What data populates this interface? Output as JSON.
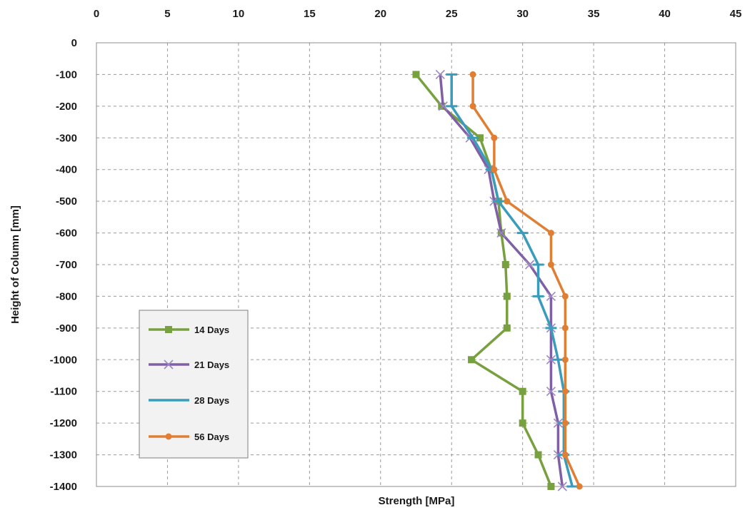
{
  "chart_data": {
    "type": "line",
    "xlabel": "Strength [MPa]",
    "ylabel": "Height of Column [mm]",
    "xlim": [
      0,
      45
    ],
    "ylim": [
      -1400,
      0
    ],
    "x_ticks": [
      0,
      5,
      10,
      15,
      20,
      25,
      30,
      35,
      40,
      45
    ],
    "y_ticks": [
      0,
      -100,
      -200,
      -300,
      -400,
      -500,
      -600,
      -700,
      -800,
      -900,
      -1000,
      -1100,
      -1200,
      -1300,
      -1400
    ],
    "x_axis_position": "top",
    "grid": true,
    "legend_position": "bottom-left",
    "series": [
      {
        "name": "14 Days",
        "color": "#77a03e",
        "marker": "square",
        "points": [
          [
            22.5,
            -100
          ],
          [
            24.3,
            -200
          ],
          [
            27,
            -300
          ],
          [
            27.8,
            -400
          ],
          [
            28.3,
            -500
          ],
          [
            28.5,
            -600
          ],
          [
            28.8,
            -700
          ],
          [
            28.9,
            -800
          ],
          [
            28.9,
            -900
          ],
          [
            26.4,
            -1000
          ],
          [
            30,
            -1100
          ],
          [
            30,
            -1200
          ],
          [
            31.1,
            -1300
          ],
          [
            32,
            -1400
          ]
        ]
      },
      {
        "name": "21 Days",
        "color": "#7f5fa5",
        "marker": "x",
        "points": [
          [
            24.2,
            -100
          ],
          [
            24.4,
            -200
          ],
          [
            26.3,
            -300
          ],
          [
            27.6,
            -400
          ],
          [
            28,
            -500
          ],
          [
            28.5,
            -600
          ],
          [
            30.5,
            -700
          ],
          [
            32,
            -800
          ],
          [
            32,
            -900
          ],
          [
            32,
            -1000
          ],
          [
            32,
            -1100
          ],
          [
            32.5,
            -1200
          ],
          [
            32.5,
            -1300
          ],
          [
            32.8,
            -1400
          ]
        ]
      },
      {
        "name": "28 Days",
        "color": "#3a9cbb",
        "marker": "dash",
        "points": [
          [
            25,
            -100
          ],
          [
            25,
            -200
          ],
          [
            26.5,
            -300
          ],
          [
            27.8,
            -400
          ],
          [
            28.3,
            -500
          ],
          [
            30,
            -600
          ],
          [
            31.1,
            -700
          ],
          [
            31.1,
            -800
          ],
          [
            32,
            -900
          ],
          [
            32.5,
            -1000
          ],
          [
            32.9,
            -1100
          ],
          [
            32.9,
            -1200
          ],
          [
            32.9,
            -1300
          ],
          [
            33.5,
            -1400
          ]
        ]
      },
      {
        "name": "56 Days",
        "color": "#e07f33",
        "marker": "circle",
        "points": [
          [
            26.5,
            -100
          ],
          [
            26.5,
            -200
          ],
          [
            28,
            -300
          ],
          [
            28,
            -400
          ],
          [
            28.9,
            -500
          ],
          [
            32,
            -600
          ],
          [
            32,
            -700
          ],
          [
            33,
            -800
          ],
          [
            33,
            -900
          ],
          [
            33,
            -1000
          ],
          [
            33,
            -1100
          ],
          [
            33,
            -1200
          ],
          [
            33,
            -1300
          ],
          [
            34,
            -1400
          ]
        ]
      }
    ]
  }
}
